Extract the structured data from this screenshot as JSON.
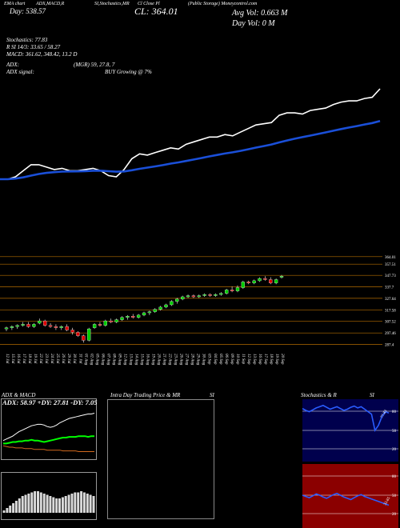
{
  "header": {
    "tab_labels": [
      "EMA chart",
      "ADX,MACD,R",
      "SI,Stochastics,MR",
      "Cl Close Pl"
    ],
    "company": "(Public Storage) Moneycontrol.com",
    "day_change": "Day: 538.57",
    "close": "CL: 364.01",
    "avg_vol": "Avg Vol: 0.663 M",
    "day_vol": "Day Vol: 0  M"
  },
  "info": {
    "stochastics": "Stochastics: 77.83",
    "rsi": "R         SI 14/3: 33.65 / 58.27",
    "macd": "MACD: 361.62,  348.42,  13.2  D",
    "adx": "ADX:",
    "adx_mgr": "(MGR) 59,  27.8,  7",
    "adx_signal": "ADX  signal:",
    "buy_signal": "BUY Growing @ 7%"
  },
  "price_axis": [
    "364.01",
    "357.51",
    "347.73",
    "337.7",
    "327.64",
    "317.58",
    "307.52",
    "297.46",
    "287.4"
  ],
  "dates": [
    "12 Jul",
    "15 Jul",
    "16 Jul",
    "17 Jul",
    "18 Jul",
    "19 Jul",
    "22 Jul",
    "23 Jul",
    "24 Jul",
    "25 Jul",
    "26 Jul",
    "29 Jul",
    "30 Jul",
    "31 Jul",
    "01 Aug",
    "02 Aug",
    "05 Aug",
    "06 Aug",
    "07 Aug",
    "08 Aug",
    "09 Aug",
    "12 Aug",
    "13 Aug",
    "14 Aug",
    "15 Aug",
    "16 Aug",
    "19 Aug",
    "20 Aug",
    "21 Aug",
    "22 Aug",
    "23 Aug",
    "26 Aug",
    "27 Aug",
    "28 Aug",
    "29 Aug",
    "30 Aug",
    "03 Sep",
    "04 Sep",
    "05 Sep",
    "06 Sep",
    "09 Sep",
    "10 Sep",
    "11 Sep",
    "12 Sep",
    "13 Sep",
    "16 Sep",
    "17 Sep",
    "18 Sep",
    "19 Sep",
    "20 Sep"
  ],
  "panels": {
    "adx_title": "ADX  & MACD",
    "adx_values": "ADX: 58.97  +DY: 27.81  -DY: 7.05",
    "intra_title": "Intra  Day Trading Price  & MR",
    "intra_si": "SI",
    "stoch_title": "Stochastics & R",
    "stoch_si": "SI",
    "stoch_ticks": [
      "80",
      "50",
      "20"
    ],
    "stoch_current": "77.83",
    "rsi_ticks": [
      "80",
      "50",
      "20"
    ],
    "rsi_current": "33.65"
  },
  "colors": {
    "up": "#00cc00",
    "down": "#dd0000",
    "ema": "#1a4fd8",
    "price": "#ffffff",
    "rsi_bg": "#8b0000",
    "stoch_bg": "#00004d"
  },
  "chart_data": {
    "type": "candlestick",
    "close_line": [
      289,
      289,
      291,
      296,
      301,
      301,
      299,
      297,
      298,
      296,
      296,
      297,
      298,
      296,
      292,
      291,
      297,
      306,
      310,
      309,
      311,
      313,
      315,
      314,
      318,
      320,
      322,
      324,
      324,
      326,
      325,
      328,
      331,
      334,
      335,
      336,
      342,
      344,
      344,
      343,
      346,
      347,
      348,
      351,
      353,
      354,
      354,
      356,
      357,
      364
    ],
    "ema_line": [
      289,
      289,
      289.5,
      290.5,
      292,
      293.3,
      294.2,
      294.8,
      295.3,
      295.4,
      295.5,
      295.7,
      296,
      296,
      295.6,
      295.2,
      295.4,
      296.4,
      297.6,
      298.6,
      299.6,
      300.7,
      301.9,
      302.9,
      304.1,
      305.3,
      306.6,
      307.9,
      309.1,
      310.3,
      311.3,
      312.5,
      313.8,
      315.2,
      316.5,
      317.8,
      319.5,
      321.1,
      322.6,
      323.9,
      325.2,
      326.5,
      327.8,
      329.2,
      330.6,
      331.9,
      333.1,
      334.4,
      335.6,
      337.3
    ],
    "candles": [
      {
        "o": 301,
        "h": 303,
        "l": 299,
        "c": 302
      },
      {
        "o": 302,
        "h": 304,
        "l": 300,
        "c": 303
      },
      {
        "o": 303,
        "h": 305,
        "l": 301,
        "c": 304
      },
      {
        "o": 304,
        "h": 307,
        "l": 303,
        "c": 305
      },
      {
        "o": 305,
        "h": 307,
        "l": 302,
        "c": 303
      },
      {
        "o": 303,
        "h": 306,
        "l": 302,
        "c": 305
      },
      {
        "o": 306,
        "h": 310,
        "l": 305,
        "c": 308
      },
      {
        "o": 308,
        "h": 309,
        "l": 303,
        "c": 304
      },
      {
        "o": 304,
        "h": 306,
        "l": 302,
        "c": 303
      },
      {
        "o": 303,
        "h": 305,
        "l": 300,
        "c": 302
      },
      {
        "o": 302,
        "h": 304,
        "l": 300,
        "c": 303
      },
      {
        "o": 303,
        "h": 305,
        "l": 299,
        "c": 300
      },
      {
        "o": 300,
        "h": 302,
        "l": 296,
        "c": 298
      },
      {
        "o": 298,
        "h": 299,
        "l": 294,
        "c": 295
      },
      {
        "o": 295,
        "h": 296,
        "l": 289,
        "c": 291
      },
      {
        "o": 291,
        "h": 302,
        "l": 290,
        "c": 301
      },
      {
        "o": 302,
        "h": 306,
        "l": 301,
        "c": 305
      },
      {
        "o": 305,
        "h": 307,
        "l": 303,
        "c": 304
      },
      {
        "o": 304,
        "h": 309,
        "l": 303,
        "c": 308
      },
      {
        "o": 308,
        "h": 310,
        "l": 306,
        "c": 307
      },
      {
        "o": 307,
        "h": 310,
        "l": 306,
        "c": 309
      },
      {
        "o": 309,
        "h": 312,
        "l": 308,
        "c": 311
      },
      {
        "o": 311,
        "h": 313,
        "l": 309,
        "c": 312
      },
      {
        "o": 312,
        "h": 314,
        "l": 310,
        "c": 311
      },
      {
        "o": 311,
        "h": 314,
        "l": 310,
        "c": 313
      },
      {
        "o": 313,
        "h": 316,
        "l": 312,
        "c": 315
      },
      {
        "o": 315,
        "h": 317,
        "l": 313,
        "c": 316
      },
      {
        "o": 316,
        "h": 319,
        "l": 315,
        "c": 318
      },
      {
        "o": 318,
        "h": 321,
        "l": 317,
        "c": 320
      },
      {
        "o": 320,
        "h": 323,
        "l": 319,
        "c": 322
      },
      {
        "o": 322,
        "h": 326,
        "l": 321,
        "c": 325
      },
      {
        "o": 325,
        "h": 328,
        "l": 323,
        "c": 327
      },
      {
        "o": 327,
        "h": 330,
        "l": 326,
        "c": 329
      },
      {
        "o": 329,
        "h": 331,
        "l": 328,
        "c": 330
      },
      {
        "o": 330,
        "h": 331,
        "l": 328,
        "c": 329
      },
      {
        "o": 329,
        "h": 331,
        "l": 328,
        "c": 330
      },
      {
        "o": 330,
        "h": 332,
        "l": 329,
        "c": 331
      },
      {
        "o": 331,
        "h": 332,
        "l": 329,
        "c": 330
      },
      {
        "o": 330,
        "h": 332,
        "l": 329,
        "c": 331
      },
      {
        "o": 331,
        "h": 333,
        "l": 330,
        "c": 332
      },
      {
        "o": 332,
        "h": 336,
        "l": 331,
        "c": 335
      },
      {
        "o": 335,
        "h": 338,
        "l": 333,
        "c": 334
      },
      {
        "o": 334,
        "h": 339,
        "l": 333,
        "c": 337
      },
      {
        "o": 337,
        "h": 343,
        "l": 336,
        "c": 342
      },
      {
        "o": 342,
        "h": 343,
        "l": 340,
        "c": 341
      },
      {
        "o": 341,
        "h": 344,
        "l": 340,
        "c": 343
      },
      {
        "o": 343,
        "h": 346,
        "l": 342,
        "c": 345
      },
      {
        "o": 345,
        "h": 347,
        "l": 343,
        "c": 344
      },
      {
        "o": 344,
        "h": 346,
        "l": 340,
        "c": 341
      },
      {
        "o": 341,
        "h": 345,
        "l": 340,
        "c": 344
      },
      {
        "o": 346,
        "h": 348,
        "l": 345,
        "c": 347
      }
    ],
    "ylim": [
      285,
      366
    ],
    "adx": [
      22,
      24,
      26,
      28,
      31,
      34,
      36,
      38,
      40,
      42,
      43,
      44,
      44,
      43,
      41,
      40,
      41,
      43,
      46,
      48,
      50,
      52,
      53,
      54,
      55,
      56,
      57,
      58,
      58,
      59
    ],
    "plus_di": [
      18,
      18,
      19,
      20,
      20,
      21,
      21,
      22,
      22,
      23,
      22,
      22,
      21,
      20,
      21,
      22,
      23,
      24,
      25,
      26,
      26,
      27,
      27,
      27,
      28,
      28,
      28,
      27,
      28,
      28
    ],
    "minus_di": [
      15,
      14,
      13,
      13,
      12,
      12,
      12,
      11,
      11,
      11,
      10,
      10,
      10,
      10,
      9,
      9,
      9,
      9,
      9,
      8,
      8,
      8,
      8,
      8,
      7,
      7,
      7,
      7,
      7,
      7
    ],
    "macd_hist": [
      2,
      4,
      6,
      8,
      10,
      12,
      14,
      15,
      16,
      17,
      18,
      18,
      17,
      16,
      15,
      14,
      13,
      12,
      12,
      13,
      14,
      15,
      16,
      17,
      17,
      18,
      17,
      16,
      15,
      14
    ],
    "stoch": [
      85,
      82,
      80,
      83,
      86,
      88,
      90,
      87,
      84,
      86,
      88,
      85,
      82,
      84,
      87,
      89,
      86,
      88,
      84,
      80,
      76,
      50,
      58,
      72,
      80,
      78
    ],
    "rsi": [
      50,
      48,
      46,
      49,
      52,
      50,
      47,
      45,
      48,
      51,
      53,
      50,
      47,
      45,
      43,
      46,
      49,
      51,
      48,
      46,
      44,
      42,
      40,
      38,
      36,
      34
    ]
  }
}
